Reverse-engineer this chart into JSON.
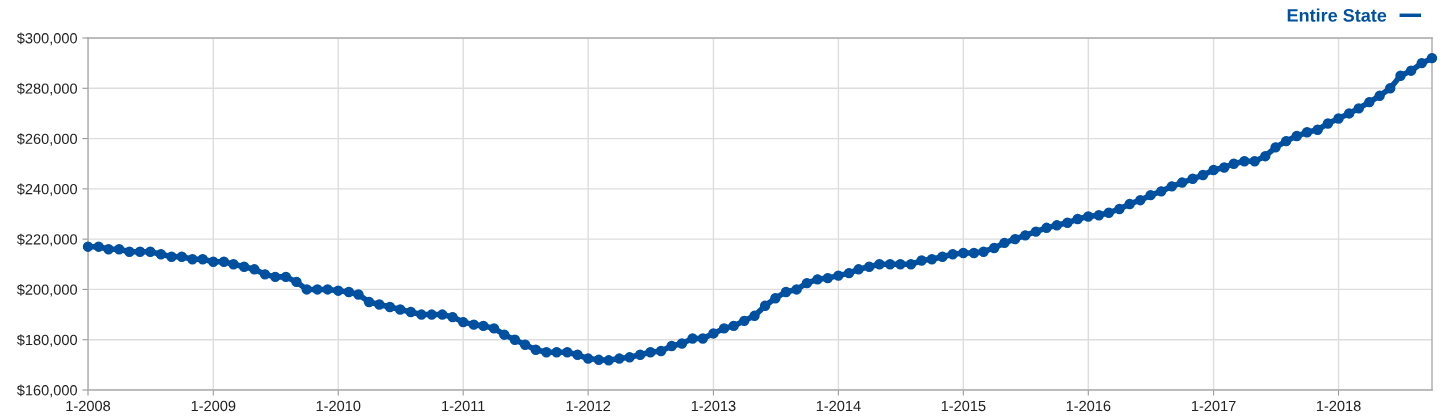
{
  "chart_data": {
    "type": "line",
    "x": [
      "2008-01",
      "2008-02",
      "2008-03",
      "2008-04",
      "2008-05",
      "2008-06",
      "2008-07",
      "2008-08",
      "2008-09",
      "2008-10",
      "2008-11",
      "2008-12",
      "2009-01",
      "2009-02",
      "2009-03",
      "2009-04",
      "2009-05",
      "2009-06",
      "2009-07",
      "2009-08",
      "2009-09",
      "2009-10",
      "2009-11",
      "2009-12",
      "2010-01",
      "2010-02",
      "2010-03",
      "2010-04",
      "2010-05",
      "2010-06",
      "2010-07",
      "2010-08",
      "2010-09",
      "2010-10",
      "2010-11",
      "2010-12",
      "2011-01",
      "2011-02",
      "2011-03",
      "2011-04",
      "2011-05",
      "2011-06",
      "2011-07",
      "2011-08",
      "2011-09",
      "2011-10",
      "2011-11",
      "2011-12",
      "2012-01",
      "2012-02",
      "2012-03",
      "2012-04",
      "2012-05",
      "2012-06",
      "2012-07",
      "2012-08",
      "2012-09",
      "2012-10",
      "2012-11",
      "2012-12",
      "2013-01",
      "2013-02",
      "2013-03",
      "2013-04",
      "2013-05",
      "2013-06",
      "2013-07",
      "2013-08",
      "2013-09",
      "2013-10",
      "2013-11",
      "2013-12",
      "2014-01",
      "2014-02",
      "2014-03",
      "2014-04",
      "2014-05",
      "2014-06",
      "2014-07",
      "2014-08",
      "2014-09",
      "2014-10",
      "2014-11",
      "2014-12",
      "2015-01",
      "2015-02",
      "2015-03",
      "2015-04",
      "2015-05",
      "2015-06",
      "2015-07",
      "2015-08",
      "2015-09",
      "2015-10",
      "2015-11",
      "2015-12",
      "2016-01",
      "2016-02",
      "2016-03",
      "2016-04",
      "2016-05",
      "2016-06",
      "2016-07",
      "2016-08",
      "2016-09",
      "2016-10",
      "2016-11",
      "2016-12",
      "2017-01",
      "2017-02",
      "2017-03",
      "2017-04",
      "2017-05",
      "2017-06",
      "2017-07",
      "2017-08",
      "2017-09",
      "2017-10",
      "2017-11",
      "2017-12",
      "2018-01",
      "2018-02",
      "2018-03",
      "2018-04",
      "2018-05",
      "2018-06",
      "2018-07",
      "2018-08",
      "2018-09",
      "2018-10"
    ],
    "series": [
      {
        "name": "Entire State",
        "color": "#0050a0",
        "values": [
          217000,
          217000,
          216000,
          216000,
          215000,
          215000,
          215000,
          214000,
          213000,
          213000,
          212000,
          212000,
          211000,
          211000,
          210000,
          209000,
          208000,
          206000,
          205000,
          205000,
          203000,
          200000,
          200000,
          200000,
          199500,
          199000,
          198000,
          195000,
          194000,
          193000,
          192000,
          191000,
          190000,
          190000,
          190000,
          189000,
          187000,
          186000,
          185500,
          184500,
          182000,
          180000,
          178000,
          176000,
          175000,
          175000,
          175000,
          174000,
          172500,
          172000,
          171800,
          172500,
          173000,
          174000,
          175000,
          175500,
          177500,
          178500,
          180500,
          180500,
          182500,
          184500,
          185500,
          187500,
          189500,
          193500,
          196500,
          199000,
          200000,
          202500,
          204000,
          204500,
          205500,
          206500,
          208000,
          209000,
          210000,
          210000,
          210000,
          210000,
          211500,
          212000,
          213000,
          214000,
          214500,
          214500,
          215000,
          216500,
          218500,
          220000,
          221500,
          223000,
          224500,
          225500,
          226500,
          228000,
          229000,
          229500,
          230500,
          232000,
          234000,
          235500,
          237500,
          239000,
          241000,
          242500,
          244000,
          245500,
          247500,
          248500,
          250000,
          251000,
          251000,
          253000,
          256500,
          259000,
          261000,
          262500,
          263500,
          266000,
          268000,
          270000,
          272000,
          274500,
          277000,
          280000,
          285000,
          287000,
          290000,
          292000
        ]
      }
    ],
    "xlim": [
      "2008-01",
      "2018-10"
    ],
    "xticks": [
      {
        "value": "2008-01",
        "label": "1-2008"
      },
      {
        "value": "2009-01",
        "label": "1-2009"
      },
      {
        "value": "2010-01",
        "label": "1-2010"
      },
      {
        "value": "2011-01",
        "label": "1-2011"
      },
      {
        "value": "2012-01",
        "label": "1-2012"
      },
      {
        "value": "2013-01",
        "label": "1-2013"
      },
      {
        "value": "2014-01",
        "label": "1-2014"
      },
      {
        "value": "2015-01",
        "label": "1-2015"
      },
      {
        "value": "2016-01",
        "label": "1-2016"
      },
      {
        "value": "2017-01",
        "label": "1-2017"
      },
      {
        "value": "2018-01",
        "label": "1-2018"
      }
    ],
    "ylim": [
      160000,
      300000
    ],
    "yticks": [
      {
        "value": 160000,
        "label": "$160,000"
      },
      {
        "value": 180000,
        "label": "$180,000"
      },
      {
        "value": 200000,
        "label": "$200,000"
      },
      {
        "value": 220000,
        "label": "$220,000"
      },
      {
        "value": 240000,
        "label": "$240,000"
      },
      {
        "value": 260000,
        "label": "$260,000"
      },
      {
        "value": 280000,
        "label": "$280,000"
      },
      {
        "value": 300000,
        "label": "$300,000"
      }
    ],
    "grid": true,
    "legend": "top right",
    "marker": "circle",
    "line_style": "solid"
  }
}
